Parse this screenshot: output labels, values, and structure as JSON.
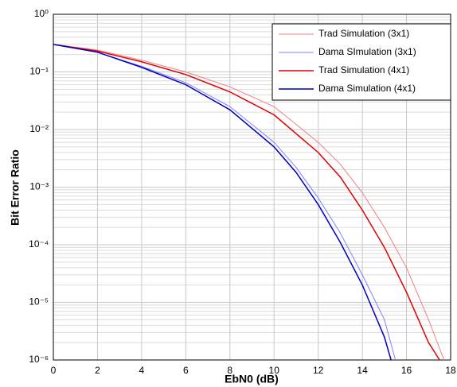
{
  "chart_data": {
    "type": "line",
    "log_y": true,
    "grid": true,
    "minor_grid": true,
    "legend": "upper right",
    "xlabel": "EbN0 (dB)",
    "ylabel": "Bit Error Ratio",
    "xlim": [
      0,
      18
    ],
    "xticks": [
      0,
      2,
      4,
      6,
      8,
      10,
      12,
      14,
      16,
      18
    ],
    "ylim": [
      1e-06,
      1
    ],
    "yticks": [
      {
        "value": 1,
        "label": "10⁰"
      },
      {
        "value": 0.1,
        "label": "10⁻¹"
      },
      {
        "value": 0.01,
        "label": "10⁻²"
      },
      {
        "value": 0.001,
        "label": "10⁻³"
      },
      {
        "value": 0.0001,
        "label": "10⁻⁴"
      },
      {
        "value": 1e-05,
        "label": "10⁻⁵"
      },
      {
        "value": 1e-06,
        "label": "10⁻⁶"
      }
    ],
    "series": [
      {
        "name": "Trad Simulation (3x1)",
        "color": "#f08080",
        "width": 1,
        "x": [
          0,
          2,
          4,
          6,
          8,
          10,
          12,
          13,
          14,
          15,
          16,
          17,
          17.7
        ],
        "values": [
          0.3,
          0.24,
          0.16,
          0.1,
          0.055,
          0.025,
          0.006,
          0.0025,
          0.0008,
          0.0002,
          4e-05,
          5e-06,
          1e-06
        ]
      },
      {
        "name": "Dama SImulation (3x1)",
        "color": "#8080ff",
        "width": 1,
        "x": [
          0,
          2,
          4,
          6,
          8,
          10,
          11,
          12,
          13,
          14,
          15,
          15.5
        ],
        "values": [
          0.3,
          0.22,
          0.125,
          0.065,
          0.025,
          0.006,
          0.0022,
          0.00065,
          0.00016,
          3e-05,
          5e-06,
          1e-06
        ]
      },
      {
        "name": "Trad Simulation (4x1)",
        "color": "#e00000",
        "width": 1.5,
        "x": [
          0,
          2,
          4,
          6,
          8,
          10,
          12,
          13,
          14,
          15,
          16,
          17,
          17.5
        ],
        "values": [
          0.3,
          0.23,
          0.15,
          0.09,
          0.045,
          0.018,
          0.004,
          0.0015,
          0.0004,
          9e-05,
          1.5e-05,
          2e-06,
          1e-06
        ]
      },
      {
        "name": "Dama Simulation (4x1)",
        "color": "#0000c0",
        "width": 1.5,
        "x": [
          0,
          2,
          4,
          6,
          8,
          10,
          11,
          12,
          13,
          14,
          15,
          15.3
        ],
        "values": [
          0.3,
          0.22,
          0.12,
          0.06,
          0.022,
          0.005,
          0.0018,
          0.0005,
          0.00011,
          2e-05,
          2.5e-06,
          1e-06
        ]
      }
    ]
  }
}
